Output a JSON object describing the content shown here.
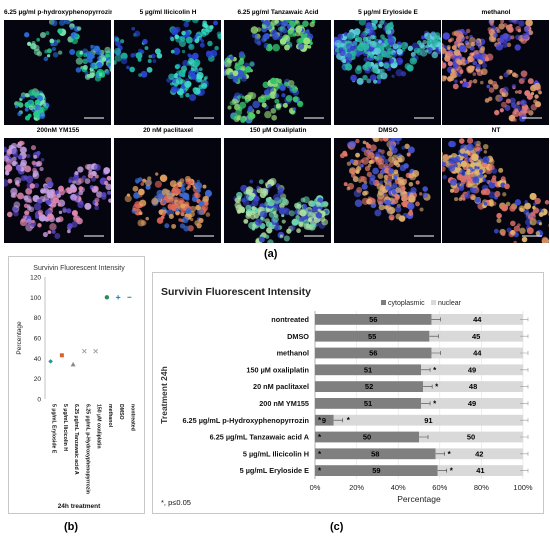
{
  "micrographs": [
    {
      "caption": "6.25 µg/ml p-hydroxyphenopyrrozin",
      "variant": 0
    },
    {
      "caption": "5 µg/ml Ilicicolin  H",
      "variant": 1
    },
    {
      "caption": "6.25 µg/ml Tanzawaic Acid",
      "variant": 2
    },
    {
      "caption": "5 µg/ml Eryloside E",
      "variant": 3
    },
    {
      "caption": "methanol",
      "variant": 4
    },
    {
      "caption": "200nM YM155",
      "variant": 5
    },
    {
      "caption": "20 nM paclitaxel",
      "variant": 6
    },
    {
      "caption": "150 µM Oxaliplatin",
      "variant": 7
    },
    {
      "caption": "DMSO",
      "variant": 8
    },
    {
      "caption": "NT",
      "variant": 9
    }
  ],
  "panel_labels": {
    "a": "(a)",
    "b": "(b)",
    "c": "(c)"
  },
  "chart_data": [
    {
      "type": "scatter",
      "title": "Survivin Fluorescent Intensity",
      "ylabel": "Percentage",
      "xlabel": "24h treatment",
      "ylim": [
        0,
        120
      ],
      "yticks": [
        0,
        20,
        40,
        60,
        80,
        100,
        120
      ],
      "grid": false,
      "categories": [
        "5 µg/mL Eryloside E",
        "5 µg/mL Ilicicolin H",
        "6.25 µg/mL Tanzawaic acid A",
        "6.25 µg/mL p-Hydroxyphenopyrrozin",
        "150 µM oxaliplatin",
        "methanol",
        "DMSO",
        "nontreated"
      ],
      "points": [
        {
          "value": 37,
          "marker": "diamond",
          "color": "#1a9e8f"
        },
        {
          "value": 43,
          "marker": "square",
          "color": "#e0602a"
        },
        {
          "value": 34,
          "marker": "triangle",
          "color": "#8a8a8a"
        },
        {
          "value": 47,
          "marker": "x",
          "color": "#9a9a9a"
        },
        {
          "value": 47,
          "marker": "x",
          "color": "#9a9a9a"
        },
        {
          "value": 100,
          "marker": "circle",
          "color": "#2e8b57"
        },
        {
          "value": 100,
          "marker": "plus",
          "color": "#1a7fb5"
        },
        {
          "value": 100,
          "marker": "dash",
          "color": "#4a9a7a"
        }
      ]
    },
    {
      "type": "bar",
      "stacked": true,
      "horizontal": true,
      "title": "Survivin Fluorescent Intensity",
      "ylabel": "Treatment 24h",
      "xlabel": "Percentage",
      "xticks": [
        "0%",
        "20%",
        "40%",
        "60%",
        "80%",
        "100%"
      ],
      "legend": [
        "cytoplasmic",
        "nuclear"
      ],
      "legend_position": "top-right",
      "colors": {
        "cytoplasmic": "#7f7f7f",
        "nuclear": "#d9d9d9"
      },
      "footnote": "*, p≤0.05",
      "rows": [
        {
          "label": "nontreated",
          "cyto": 56,
          "nuc": 44,
          "star_cyto": false,
          "star_nuc": false
        },
        {
          "label": "DMSO",
          "cyto": 55,
          "nuc": 45,
          "star_cyto": false,
          "star_nuc": false
        },
        {
          "label": "methanol",
          "cyto": 56,
          "nuc": 44,
          "star_cyto": false,
          "star_nuc": false
        },
        {
          "label": "150 µM oxaliplatin",
          "cyto": 51,
          "nuc": 49,
          "star_cyto": false,
          "star_nuc": true
        },
        {
          "label": "20 nM paclitaxel",
          "cyto": 52,
          "nuc": 48,
          "star_cyto": false,
          "star_nuc": true
        },
        {
          "label": "200 nM YM155",
          "cyto": 51,
          "nuc": 49,
          "star_cyto": false,
          "star_nuc": true
        },
        {
          "label": "6.25 µg/mL p-Hydroxyphenopyrrozin",
          "cyto": 9,
          "nuc": 91,
          "star_cyto": true,
          "star_nuc": true
        },
        {
          "label": "6.25 µg/mL Tanzawaic acid A",
          "cyto": 50,
          "nuc": 50,
          "star_cyto": true,
          "star_nuc": false
        },
        {
          "label": "5 µg/mL Ilicicolin H",
          "cyto": 58,
          "nuc": 42,
          "star_cyto": true,
          "star_nuc": true
        },
        {
          "label": "5 µg/mL Eryloside E",
          "cyto": 59,
          "nuc": 41,
          "star_cyto": true,
          "star_nuc": true
        }
      ]
    }
  ]
}
